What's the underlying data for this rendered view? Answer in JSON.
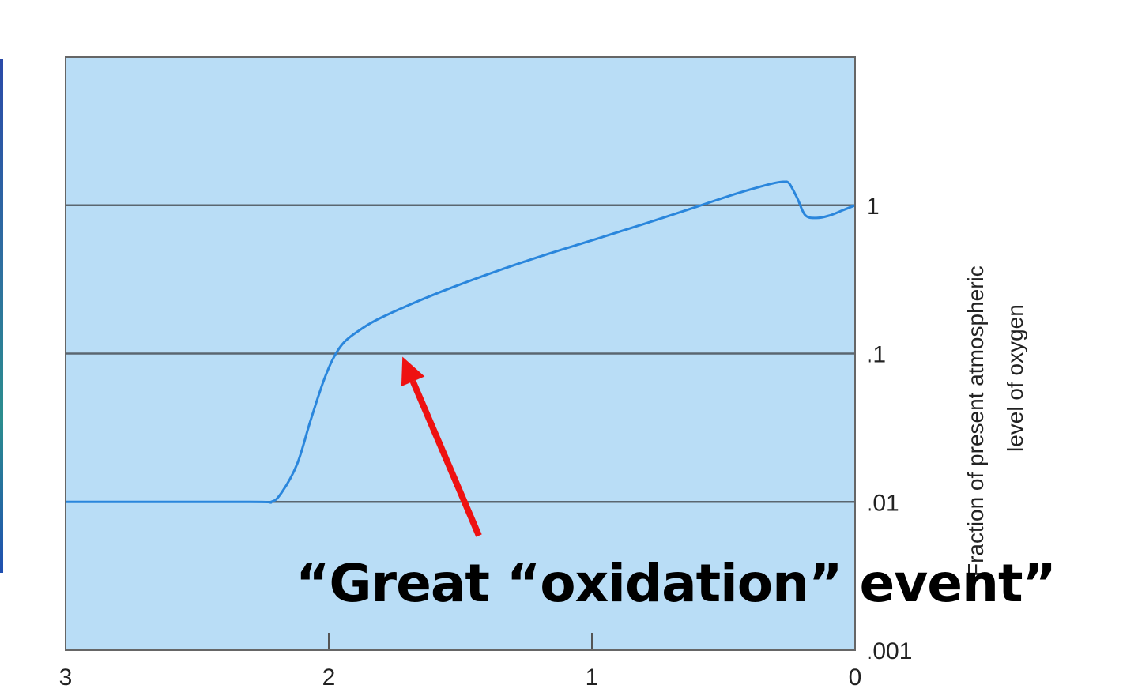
{
  "chart_data": {
    "type": "line",
    "title": "",
    "xlabel": "",
    "ylabel": "Fraction of present atmospheric level of oxygen",
    "ylabel_lines": [
      "Fraction of present atmospheric",
      "level of oxygen"
    ],
    "x_reversed": true,
    "xlim": [
      3,
      0
    ],
    "ylim": [
      0.001,
      10
    ],
    "y_scale": "log",
    "xticks": [
      "3",
      "2",
      "1",
      "0"
    ],
    "yticks": [
      {
        "value": 1,
        "label": "1"
      },
      {
        "value": 0.1,
        "label": ".1"
      },
      {
        "value": 0.01,
        "label": ".01"
      },
      {
        "value": 0.001,
        "label": ".001"
      }
    ],
    "grid": "horizontal",
    "background_color": "#b9ddf6",
    "line_color": "#2a86dc",
    "series": [
      {
        "name": "",
        "x": [
          3.0,
          2.3,
          2.22,
          2.18,
          2.12,
          2.07,
          2.02,
          1.98,
          1.94,
          1.88,
          1.8,
          1.6,
          1.4,
          1.2,
          1.0,
          0.8,
          0.6,
          0.45,
          0.35,
          0.3,
          0.27,
          0.25,
          0.22,
          0.19,
          0.15,
          0.1,
          0.05,
          0.0
        ],
        "y": [
          0.01,
          0.01,
          0.01,
          0.0115,
          0.018,
          0.035,
          0.065,
          0.095,
          0.12,
          0.145,
          0.175,
          0.25,
          0.34,
          0.45,
          0.58,
          0.75,
          0.98,
          1.2,
          1.35,
          1.42,
          1.44,
          1.4,
          1.12,
          0.86,
          0.82,
          0.85,
          0.92,
          1.0
        ]
      }
    ],
    "annotations": [
      {
        "text": "“Great “oxidation” event”",
        "arrow_to": {
          "x": 1.72,
          "y": 0.1
        },
        "arrow_color": "#ee1111"
      }
    ]
  }
}
